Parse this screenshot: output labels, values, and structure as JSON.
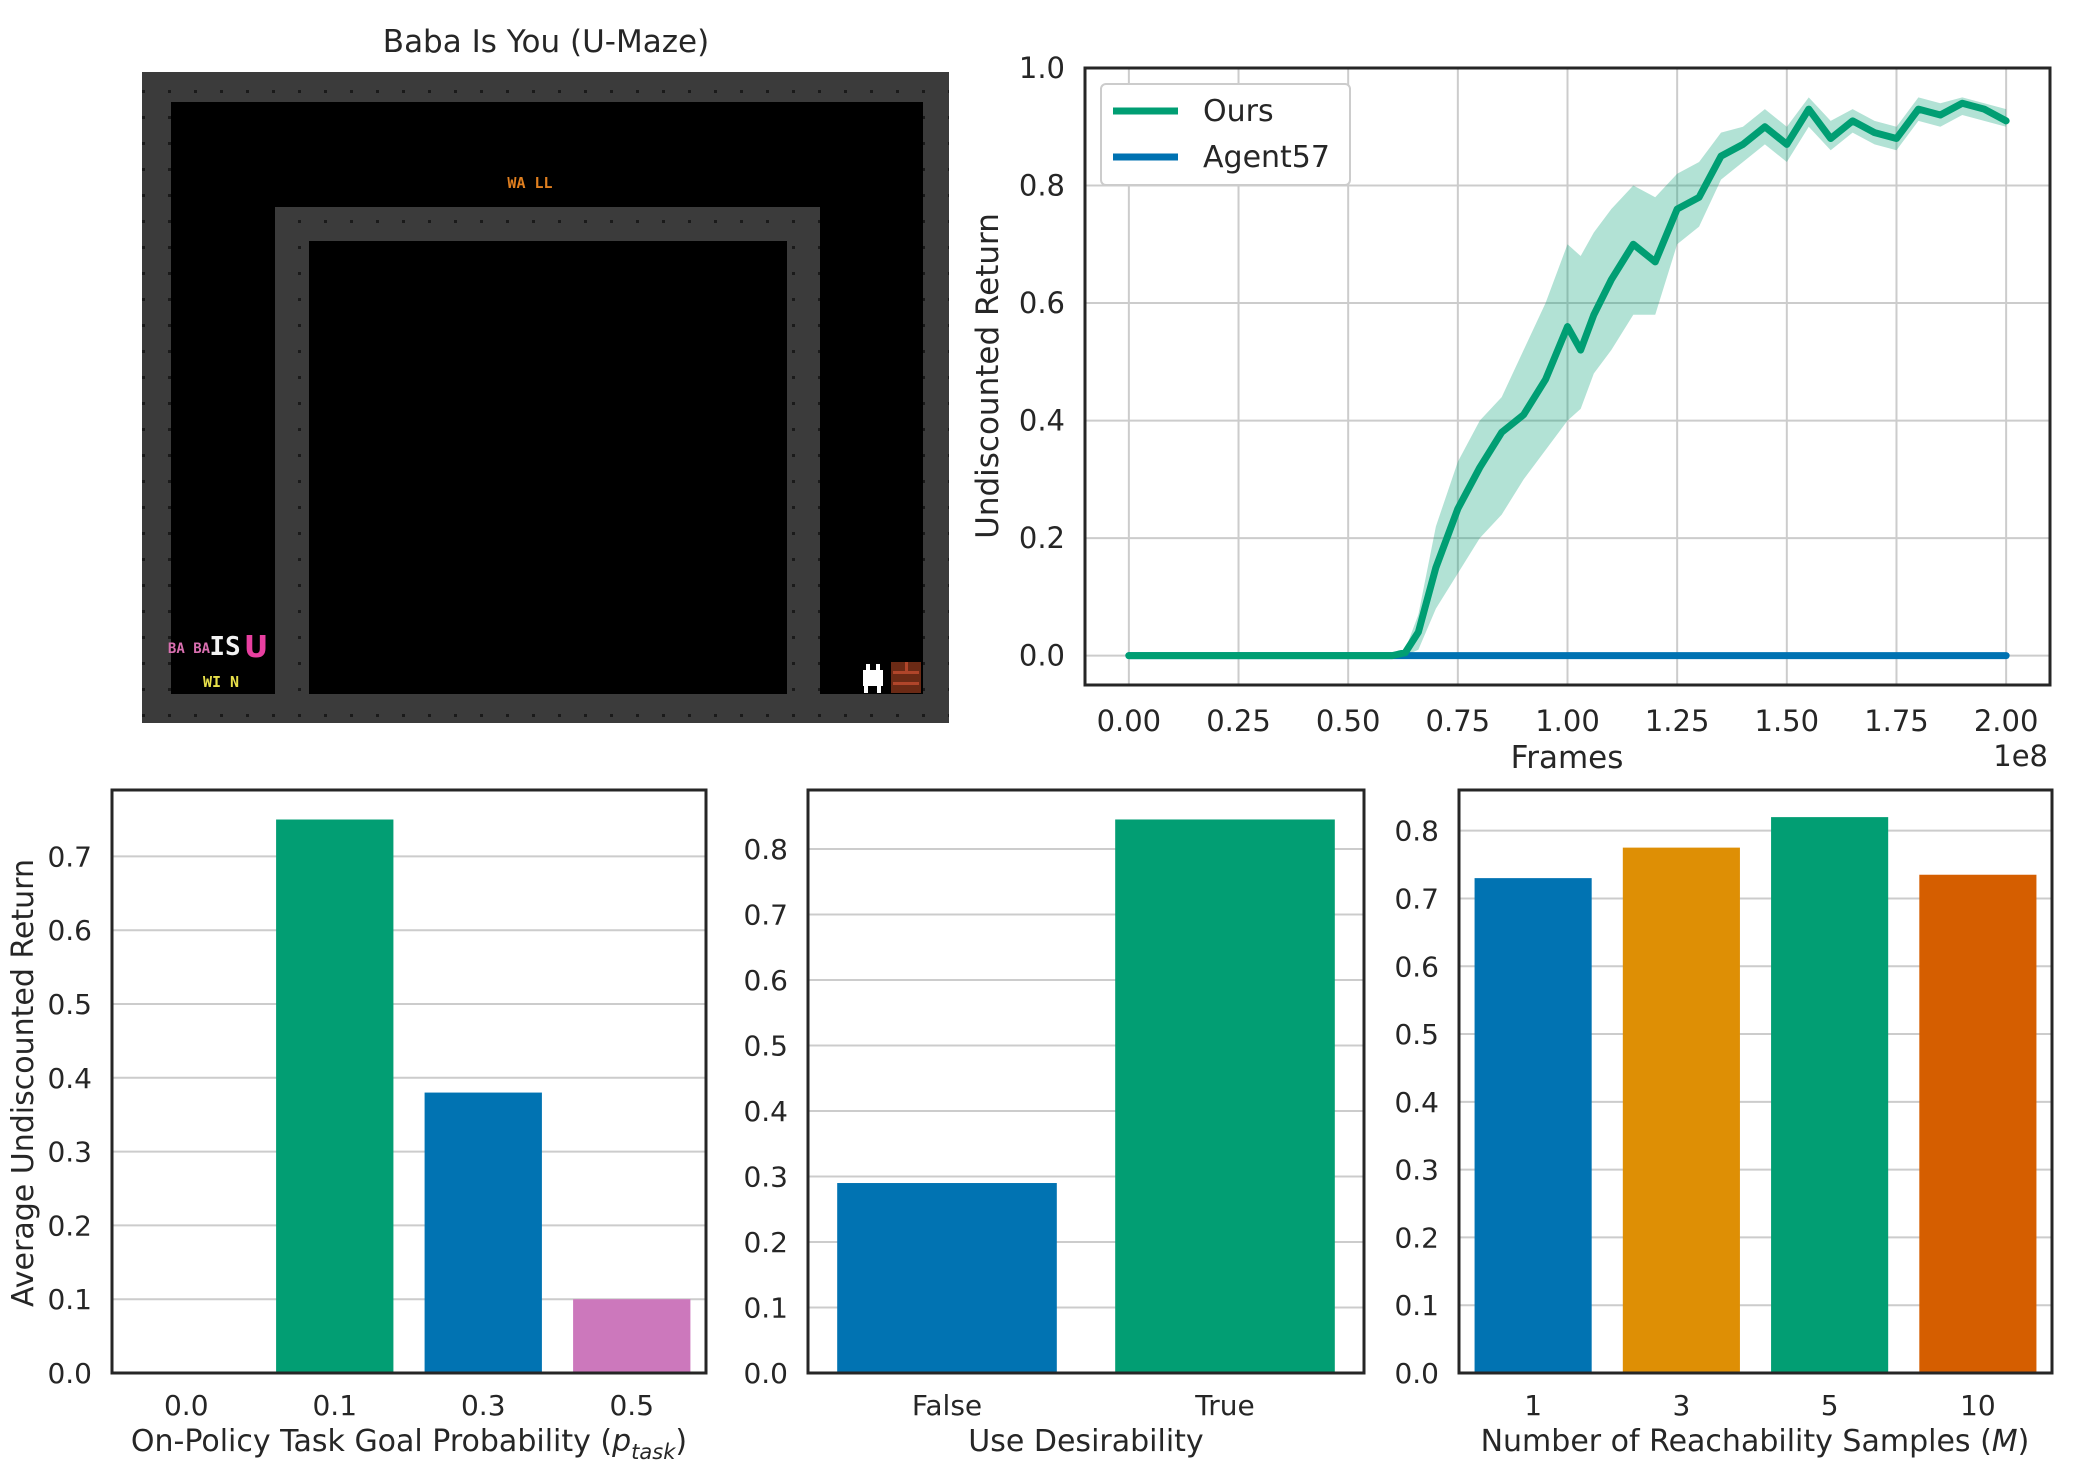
{
  "game_panel": {
    "title": "Baba Is You (U-Maze)",
    "tiles": {
      "wall_word": "WA LL",
      "baba_word": "BA BA",
      "is_word": "IS",
      "you_word": "U",
      "win_word": "WI N"
    }
  },
  "chart_data": [
    {
      "type": "line",
      "xlabel": "Frames",
      "ylabel": "Undiscounted Return",
      "x_multiplier_label": "1e8",
      "xlim": [
        -0.1,
        2.1
      ],
      "ylim": [
        -0.05,
        1.0
      ],
      "xticks": [
        "0.00",
        "0.25",
        "0.50",
        "0.75",
        "1.00",
        "1.25",
        "1.50",
        "1.75",
        "2.00"
      ],
      "yticks": [
        "0.0",
        "0.2",
        "0.4",
        "0.6",
        "0.8",
        "1.0"
      ],
      "grid": true,
      "legend_position": "top-left",
      "series": [
        {
          "name": "Ours",
          "color": "#009e73",
          "x": [
            0.0,
            0.6,
            0.63,
            0.66,
            0.7,
            0.75,
            0.8,
            0.85,
            0.9,
            0.95,
            1.0,
            1.03,
            1.06,
            1.1,
            1.15,
            1.2,
            1.25,
            1.3,
            1.35,
            1.4,
            1.45,
            1.5,
            1.55,
            1.6,
            1.65,
            1.7,
            1.75,
            1.8,
            1.85,
            1.9,
            1.95,
            2.0
          ],
          "y": [
            0.0,
            0.0,
            0.005,
            0.04,
            0.15,
            0.25,
            0.32,
            0.38,
            0.41,
            0.47,
            0.56,
            0.52,
            0.58,
            0.64,
            0.7,
            0.67,
            0.76,
            0.78,
            0.85,
            0.87,
            0.9,
            0.87,
            0.93,
            0.88,
            0.91,
            0.89,
            0.88,
            0.93,
            0.92,
            0.94,
            0.93,
            0.91
          ],
          "band_lower": [
            0.0,
            0.0,
            0.0,
            0.01,
            0.08,
            0.14,
            0.2,
            0.24,
            0.3,
            0.35,
            0.4,
            0.42,
            0.48,
            0.52,
            0.58,
            0.58,
            0.7,
            0.73,
            0.81,
            0.84,
            0.87,
            0.84,
            0.9,
            0.86,
            0.89,
            0.87,
            0.86,
            0.91,
            0.9,
            0.92,
            0.91,
            0.9
          ],
          "band_upper": [
            0.0,
            0.0,
            0.01,
            0.07,
            0.22,
            0.33,
            0.4,
            0.44,
            0.52,
            0.6,
            0.7,
            0.68,
            0.72,
            0.76,
            0.8,
            0.78,
            0.82,
            0.84,
            0.89,
            0.9,
            0.93,
            0.9,
            0.95,
            0.91,
            0.93,
            0.91,
            0.9,
            0.95,
            0.94,
            0.95,
            0.94,
            0.93
          ]
        },
        {
          "name": "Agent57",
          "color": "#0072b2",
          "x": [
            0.0,
            2.0
          ],
          "y": [
            0.0,
            0.0
          ]
        }
      ]
    },
    {
      "type": "bar",
      "xlabel_main": "On-Policy Task Goal Probability (",
      "xlabel_sym": "p",
      "xlabel_sub": "task",
      "xlabel_end": ")",
      "ylabel": "Average Undiscounted Return",
      "categories": [
        "0.0",
        "0.1",
        "0.3",
        "0.5"
      ],
      "values": [
        0.0,
        0.75,
        0.38,
        0.1
      ],
      "colors": [
        "#0173b2",
        "#029e73",
        "#0173b2",
        "#cc78bc"
      ],
      "ylim": [
        0,
        0.79
      ],
      "yticks": [
        "0.0",
        "0.1",
        "0.2",
        "0.3",
        "0.4",
        "0.5",
        "0.6",
        "0.7"
      ],
      "grid": true
    },
    {
      "type": "bar",
      "xlabel": "Use Desirability",
      "categories": [
        "False",
        "True"
      ],
      "values": [
        0.29,
        0.845
      ],
      "colors": [
        "#0173b2",
        "#029e73"
      ],
      "ylim": [
        0,
        0.89
      ],
      "yticks": [
        "0.0",
        "0.1",
        "0.2",
        "0.3",
        "0.4",
        "0.5",
        "0.6",
        "0.7",
        "0.8"
      ],
      "grid": true
    },
    {
      "type": "bar",
      "xlabel_main": "Number of Reachability Samples (",
      "xlabel_sym": "M",
      "xlabel_end": ")",
      "categories": [
        "1",
        "3",
        "5",
        "10"
      ],
      "values": [
        0.73,
        0.775,
        0.82,
        0.735
      ],
      "colors": [
        "#0173b2",
        "#de8f05",
        "#029e73",
        "#d55e00"
      ],
      "ylim": [
        0,
        0.86
      ],
      "yticks": [
        "0.0",
        "0.1",
        "0.2",
        "0.3",
        "0.4",
        "0.5",
        "0.6",
        "0.7",
        "0.8"
      ],
      "grid": true
    }
  ]
}
